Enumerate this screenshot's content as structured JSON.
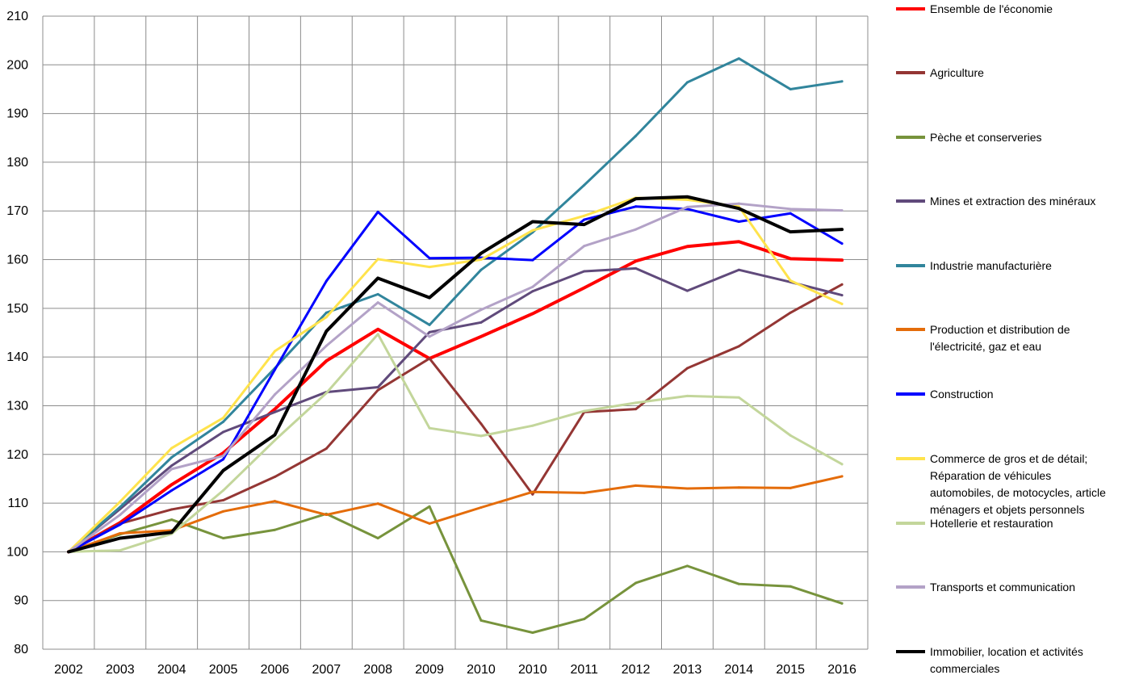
{
  "chart_data": {
    "type": "line",
    "title": "",
    "xlabel": "",
    "ylabel": "",
    "categories": [
      "2002",
      "2003",
      "2004",
      "2005",
      "2006",
      "2007",
      "2008",
      "2009",
      "2010",
      "2010",
      "2011",
      "2012",
      "2013",
      "2014",
      "2015",
      "2016"
    ],
    "ylim": [
      80,
      210
    ],
    "yticks": [
      80,
      90,
      100,
      110,
      120,
      130,
      140,
      150,
      160,
      170,
      180,
      190,
      200,
      210
    ],
    "grid": true,
    "legend_position": "right",
    "series": [
      {
        "name": "Ensemble de l'économie",
        "color": "#ff0000",
        "values": [
          100,
          106,
          113.8,
          120.3,
          129.3,
          139.2,
          145.7,
          139.7,
          144.2,
          148.9,
          154.2,
          159.7,
          162.7,
          163.7,
          160.2,
          159.9
        ]
      },
      {
        "name": "Agriculture",
        "color": "#943634",
        "values": [
          100,
          105.8,
          108.7,
          110.6,
          115.4,
          121.2,
          133.2,
          139.7,
          126.3,
          111.8,
          128.7,
          129.3,
          137.7,
          142.2,
          149.1,
          154.9
        ]
      },
      {
        "name": "Pèche et conserveries",
        "color": "#77933c",
        "values": [
          100,
          103.6,
          106.6,
          102.8,
          104.5,
          107.8,
          102.8,
          109.3,
          85.9,
          83.4,
          86.2,
          93.6,
          97.1,
          93.4,
          92.9,
          89.4
        ]
      },
      {
        "name": "Mines et extraction des minéraux",
        "color": "#604a7b",
        "values": [
          100,
          108.8,
          117.7,
          124.6,
          128.7,
          132.8,
          133.8,
          145.1,
          147.1,
          153.5,
          157.6,
          158.2,
          153.6,
          157.9,
          155.4,
          152.7
        ]
      },
      {
        "name": "Industrie manufacturière",
        "color": "#31859c",
        "values": [
          100,
          109.2,
          119.4,
          126.7,
          137.7,
          149.1,
          152.9,
          146.6,
          157.9,
          165.6,
          175.3,
          185.4,
          196.4,
          201.3,
          195,
          196.6
        ]
      },
      {
        "name": "Production et distribution de l'électricité, gaz et eau",
        "color": "#e46c0a",
        "values": [
          100,
          103.8,
          104.4,
          108.3,
          110.4,
          107.6,
          109.9,
          105.8,
          109.1,
          112.3,
          112.1,
          113.6,
          113,
          113.2,
          113.1,
          115.5
        ]
      },
      {
        "name": "Construction",
        "color": "#0000ff",
        "values": [
          100,
          105.6,
          112.6,
          119,
          137.4,
          155.6,
          169.8,
          160.3,
          160.4,
          159.9,
          168.2,
          170.9,
          170.4,
          167.8,
          169.5,
          163.3
        ]
      },
      {
        "name": "Commerce de gros et de détail; Réparation de véhicules automobiles, de motocycles, article ménagers et objets personnels",
        "color": "#ffe34c",
        "values": [
          100,
          110.3,
          121.3,
          127.5,
          141.2,
          148.2,
          160.1,
          158.5,
          160,
          166,
          169,
          172.7,
          172.3,
          170.9,
          155.7,
          150.9
        ]
      },
      {
        "name": "Hotellerie et restauration",
        "color": "#c3d69b",
        "values": [
          100,
          100.3,
          103.7,
          112.6,
          122.9,
          132.6,
          144.7,
          125.4,
          123.8,
          125.9,
          128.9,
          130.6,
          132,
          131.7,
          123.9,
          118
        ]
      },
      {
        "name": "Transports et communication",
        "color": "#b3a2c7",
        "values": [
          100,
          107.6,
          117,
          119.7,
          132.3,
          142.3,
          151.2,
          144.2,
          149.7,
          154.4,
          162.8,
          166.2,
          170.8,
          171.5,
          170.4,
          170.1
        ]
      },
      {
        "name": "Immobilier, location et activités commerciales",
        "color": "#000000",
        "values": [
          100,
          102.8,
          104,
          116.7,
          124,
          145.3,
          156.2,
          152.2,
          161.3,
          167.8,
          167.2,
          172.5,
          172.9,
          170.5,
          165.7,
          166.2
        ]
      }
    ]
  }
}
